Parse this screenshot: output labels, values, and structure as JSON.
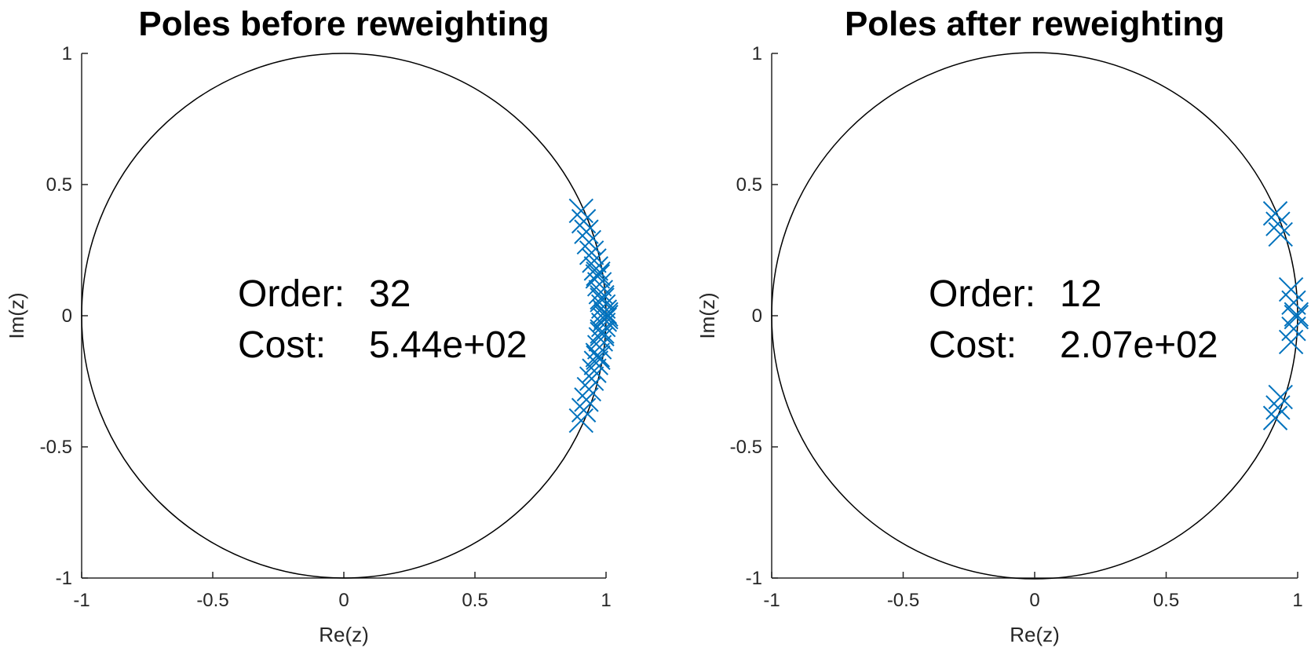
{
  "chart_data": [
    {
      "type": "scatter",
      "title": "Poles before reweighting",
      "xlabel": "Re(z)",
      "ylabel": "Im(z)",
      "xlim": [
        -1,
        1
      ],
      "ylim": [
        -1,
        1
      ],
      "xticks": [
        "-1",
        "-0.5",
        "0",
        "0.5",
        "1"
      ],
      "yticks": [
        "-1",
        "-0.5",
        "0",
        "0.5",
        "1"
      ],
      "grid": false,
      "unit_circle": true,
      "marker": "x",
      "marker_color": "#0072BD",
      "annotation": {
        "order_label": "Order:",
        "order_value": "32",
        "cost_label": "Cost:",
        "cost_value": "5.44e+02"
      },
      "points": [
        [
          0.905,
          0.4
        ],
        [
          0.915,
          0.36
        ],
        [
          0.925,
          0.32
        ],
        [
          0.935,
          0.28
        ],
        [
          0.945,
          0.24
        ],
        [
          0.955,
          0.21
        ],
        [
          0.962,
          0.18
        ],
        [
          0.968,
          0.15
        ],
        [
          0.975,
          0.12
        ],
        [
          0.98,
          0.09
        ],
        [
          0.985,
          0.06
        ],
        [
          0.99,
          0.035
        ],
        [
          0.995,
          0.015
        ],
        [
          1.0,
          0.005
        ],
        [
          0.97,
          0.16
        ],
        [
          0.985,
          0.07
        ],
        [
          0.905,
          -0.4
        ],
        [
          0.915,
          -0.36
        ],
        [
          0.925,
          -0.32
        ],
        [
          0.935,
          -0.28
        ],
        [
          0.945,
          -0.24
        ],
        [
          0.955,
          -0.21
        ],
        [
          0.962,
          -0.18
        ],
        [
          0.968,
          -0.15
        ],
        [
          0.975,
          -0.12
        ],
        [
          0.98,
          -0.09
        ],
        [
          0.985,
          -0.06
        ],
        [
          0.99,
          -0.035
        ],
        [
          0.995,
          -0.015
        ],
        [
          1.0,
          -0.005
        ],
        [
          0.97,
          -0.16
        ],
        [
          0.985,
          -0.07
        ]
      ]
    },
    {
      "type": "scatter",
      "title": "Poles after reweighting",
      "xlabel": "Re(z)",
      "ylabel": "Im(z)",
      "xlim": [
        -1,
        1
      ],
      "ylim": [
        -1,
        1
      ],
      "xticks": [
        "-1",
        "-0.5",
        "0",
        "0.5",
        "1"
      ],
      "yticks": [
        "-1",
        "-0.5",
        "0",
        "0.5",
        "1"
      ],
      "grid": false,
      "unit_circle": true,
      "marker": "x",
      "marker_color": "#0072BD",
      "annotation": {
        "order_label": "Order:",
        "order_value": "12",
        "cost_label": "Cost:",
        "cost_value": "2.07e+02"
      },
      "points": [
        [
          0.915,
          0.39
        ],
        [
          0.925,
          0.35
        ],
        [
          0.935,
          0.31
        ],
        [
          0.975,
          0.1
        ],
        [
          0.985,
          0.05
        ],
        [
          0.995,
          0.005
        ],
        [
          0.915,
          -0.39
        ],
        [
          0.925,
          -0.35
        ],
        [
          0.935,
          -0.31
        ],
        [
          0.975,
          -0.1
        ],
        [
          0.985,
          -0.05
        ],
        [
          0.995,
          -0.005
        ]
      ]
    }
  ]
}
